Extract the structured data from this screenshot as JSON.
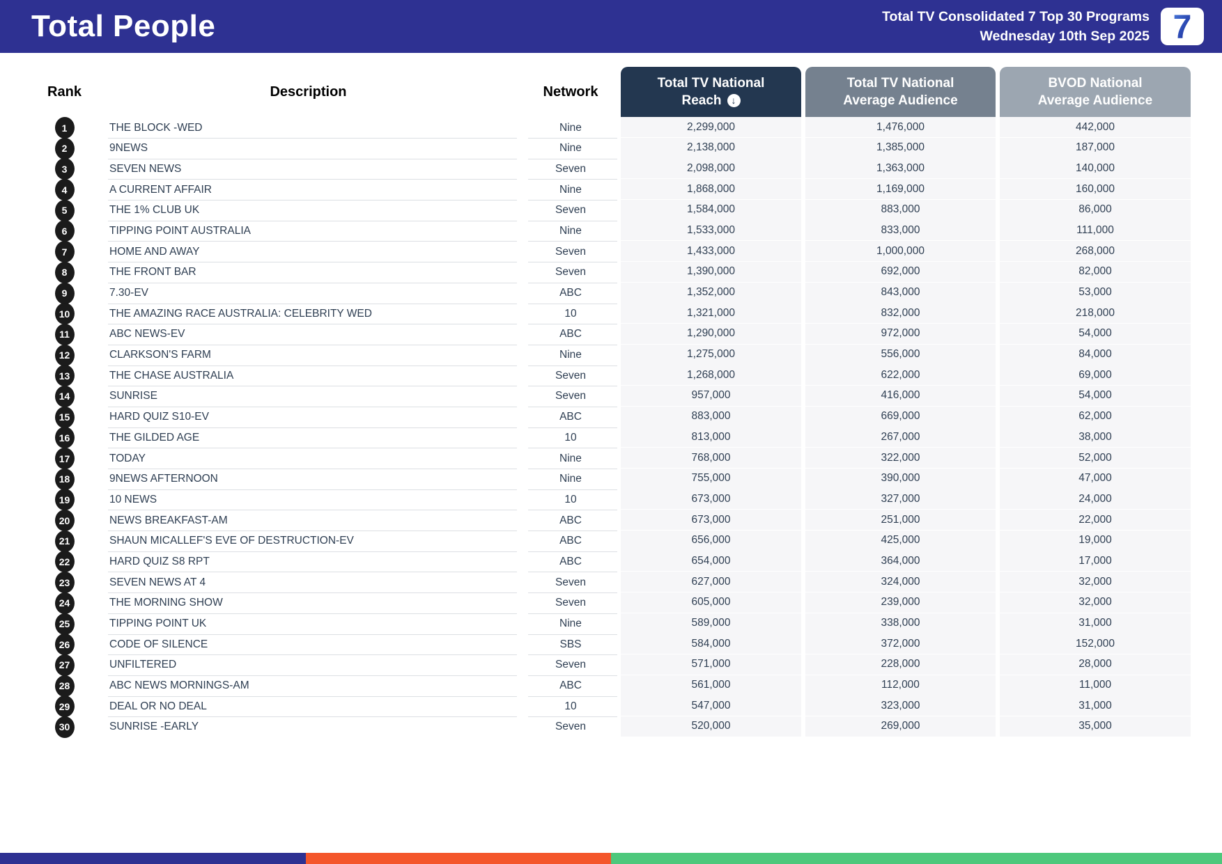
{
  "header": {
    "title": "Total People",
    "subtitle_line1": "Total TV Consolidated 7 Top 30 Programs",
    "subtitle_line2": "Wednesday 10th Sep 2025",
    "logo_text": "7"
  },
  "table": {
    "columns": {
      "rank": "Rank",
      "description": "Description",
      "network": "Network",
      "reach": {
        "line1": "Total TV National",
        "line2": "Reach"
      },
      "avg": {
        "line1": "Total TV National",
        "line2": "Average Audience"
      },
      "bvod": {
        "line1": "BVOD National",
        "line2": "Average Audience"
      }
    },
    "sort_icon": "↓",
    "rows": [
      {
        "rank": "1",
        "description": "THE BLOCK -WED",
        "network": "Nine",
        "reach": "2,299,000",
        "avg": "1,476,000",
        "bvod": "442,000"
      },
      {
        "rank": "2",
        "description": "9NEWS",
        "network": "Nine",
        "reach": "2,138,000",
        "avg": "1,385,000",
        "bvod": "187,000"
      },
      {
        "rank": "3",
        "description": "SEVEN NEWS",
        "network": "Seven",
        "reach": "2,098,000",
        "avg": "1,363,000",
        "bvod": "140,000"
      },
      {
        "rank": "4",
        "description": "A CURRENT AFFAIR",
        "network": "Nine",
        "reach": "1,868,000",
        "avg": "1,169,000",
        "bvod": "160,000"
      },
      {
        "rank": "5",
        "description": "THE 1% CLUB UK",
        "network": "Seven",
        "reach": "1,584,000",
        "avg": "883,000",
        "bvod": "86,000"
      },
      {
        "rank": "6",
        "description": "TIPPING POINT AUSTRALIA",
        "network": "Nine",
        "reach": "1,533,000",
        "avg": "833,000",
        "bvod": "111,000"
      },
      {
        "rank": "7",
        "description": "HOME AND AWAY",
        "network": "Seven",
        "reach": "1,433,000",
        "avg": "1,000,000",
        "bvod": "268,000"
      },
      {
        "rank": "8",
        "description": "THE FRONT BAR",
        "network": "Seven",
        "reach": "1,390,000",
        "avg": "692,000",
        "bvod": "82,000"
      },
      {
        "rank": "9",
        "description": "7.30-EV",
        "network": "ABC",
        "reach": "1,352,000",
        "avg": "843,000",
        "bvod": "53,000"
      },
      {
        "rank": "10",
        "description": "THE AMAZING RACE AUSTRALIA: CELEBRITY WED",
        "network": "10",
        "reach": "1,321,000",
        "avg": "832,000",
        "bvod": "218,000"
      },
      {
        "rank": "11",
        "description": "ABC NEWS-EV",
        "network": "ABC",
        "reach": "1,290,000",
        "avg": "972,000",
        "bvod": "54,000"
      },
      {
        "rank": "12",
        "description": "CLARKSON'S FARM",
        "network": "Nine",
        "reach": "1,275,000",
        "avg": "556,000",
        "bvod": "84,000"
      },
      {
        "rank": "13",
        "description": "THE CHASE AUSTRALIA",
        "network": "Seven",
        "reach": "1,268,000",
        "avg": "622,000",
        "bvod": "69,000"
      },
      {
        "rank": "14",
        "description": "SUNRISE",
        "network": "Seven",
        "reach": "957,000",
        "avg": "416,000",
        "bvod": "54,000"
      },
      {
        "rank": "15",
        "description": "HARD QUIZ S10-EV",
        "network": "ABC",
        "reach": "883,000",
        "avg": "669,000",
        "bvod": "62,000"
      },
      {
        "rank": "16",
        "description": "THE GILDED AGE",
        "network": "10",
        "reach": "813,000",
        "avg": "267,000",
        "bvod": "38,000"
      },
      {
        "rank": "17",
        "description": "TODAY",
        "network": "Nine",
        "reach": "768,000",
        "avg": "322,000",
        "bvod": "52,000"
      },
      {
        "rank": "18",
        "description": "9NEWS AFTERNOON",
        "network": "Nine",
        "reach": "755,000",
        "avg": "390,000",
        "bvod": "47,000"
      },
      {
        "rank": "19",
        "description": "10 NEWS",
        "network": "10",
        "reach": "673,000",
        "avg": "327,000",
        "bvod": "24,000"
      },
      {
        "rank": "20",
        "description": "NEWS BREAKFAST-AM",
        "network": "ABC",
        "reach": "673,000",
        "avg": "251,000",
        "bvod": "22,000"
      },
      {
        "rank": "21",
        "description": "SHAUN MICALLEF'S EVE OF DESTRUCTION-EV",
        "network": "ABC",
        "reach": "656,000",
        "avg": "425,000",
        "bvod": "19,000"
      },
      {
        "rank": "22",
        "description": "HARD QUIZ S8 RPT",
        "network": "ABC",
        "reach": "654,000",
        "avg": "364,000",
        "bvod": "17,000"
      },
      {
        "rank": "23",
        "description": "SEVEN NEWS AT 4",
        "network": "Seven",
        "reach": "627,000",
        "avg": "324,000",
        "bvod": "32,000"
      },
      {
        "rank": "24",
        "description": "THE MORNING SHOW",
        "network": "Seven",
        "reach": "605,000",
        "avg": "239,000",
        "bvod": "32,000"
      },
      {
        "rank": "25",
        "description": "TIPPING POINT UK",
        "network": "Nine",
        "reach": "589,000",
        "avg": "338,000",
        "bvod": "31,000"
      },
      {
        "rank": "26",
        "description": "CODE OF SILENCE",
        "network": "SBS",
        "reach": "584,000",
        "avg": "372,000",
        "bvod": "152,000"
      },
      {
        "rank": "27",
        "description": "UNFILTERED",
        "network": "Seven",
        "reach": "571,000",
        "avg": "228,000",
        "bvod": "28,000"
      },
      {
        "rank": "28",
        "description": "ABC NEWS MORNINGS-AM",
        "network": "ABC",
        "reach": "561,000",
        "avg": "112,000",
        "bvod": "11,000"
      },
      {
        "rank": "29",
        "description": "DEAL OR NO DEAL",
        "network": "10",
        "reach": "547,000",
        "avg": "323,000",
        "bvod": "31,000"
      },
      {
        "rank": "30",
        "description": "SUNRISE -EARLY",
        "network": "Seven",
        "reach": "520,000",
        "avg": "269,000",
        "bvod": "35,000"
      }
    ]
  },
  "colors": {
    "header_blue": "#2e3192",
    "reach_header": "#233750",
    "avg_header": "#75818f",
    "bvod_header": "#9ca6b1",
    "footer_blue": "#2e3192",
    "footer_orange": "#f4562b",
    "footer_green": "#4dc87c",
    "rank_badge": "#1b1b1b",
    "row_text": "#2e3e52",
    "logo_7_top": "#4a7bdc",
    "logo_7_bottom": "#111e8f"
  }
}
